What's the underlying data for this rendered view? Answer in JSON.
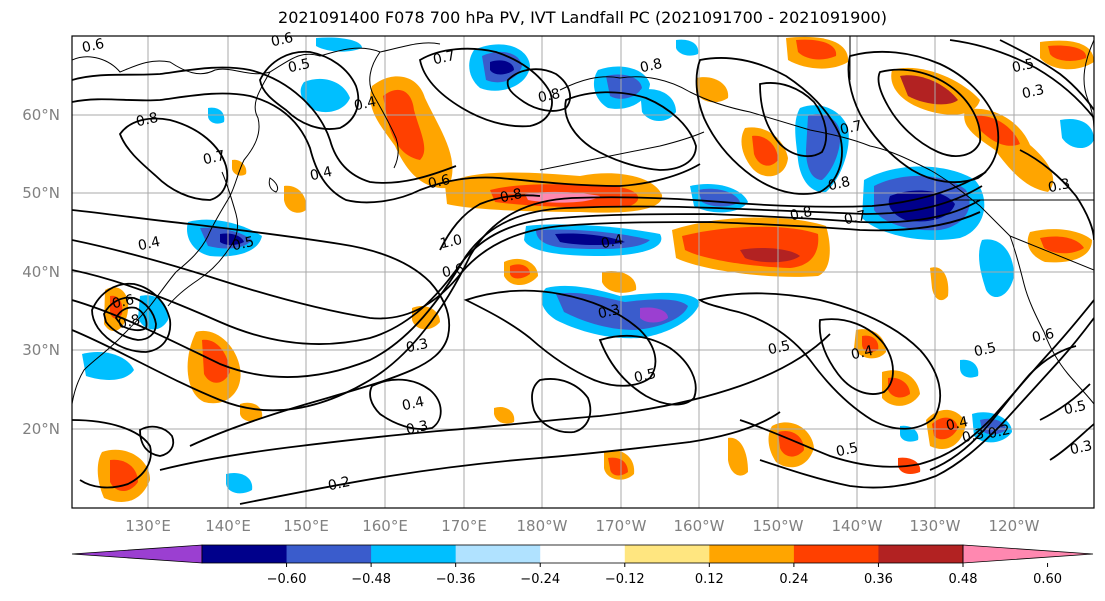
{
  "title": "2021091400 F078 700 hPa PV, IVT Landfall PC (2021091700 - 2021091900)",
  "lat_ticks": [
    "60°N",
    "50°N",
    "40°N",
    "30°N",
    "20°N"
  ],
  "lon_ticks": [
    "130°E",
    "140°E",
    "150°E",
    "160°E",
    "170°E",
    "180°W",
    "170°W",
    "160°W",
    "150°W",
    "140°W",
    "130°W",
    "120°W"
  ],
  "colorbar": {
    "tick_labels": [
      "−0.60",
      "−0.48",
      "−0.36",
      "−0.24",
      "−0.12",
      "0.12",
      "0.24",
      "0.36",
      "0.48",
      "0.60"
    ],
    "colors": [
      "#9b3fd1",
      "#00008b",
      "#3a5ccc",
      "#00bfff",
      "#b0e2ff",
      "#ffffff",
      "#ffe680",
      "#ffa500",
      "#ff4000",
      "#b22222",
      "#ff88b0"
    ]
  },
  "contour_labels": [
    "0.6",
    "0.6",
    "0.5",
    "0.7",
    "0.8",
    "0.8",
    "0.4",
    "0.8",
    "0.7",
    "0.4",
    "0.6",
    "0.8",
    "0.4",
    "0.5",
    "0.8",
    "0.7",
    "0.8",
    "0.7",
    "1.0",
    "0.4",
    "0.6",
    "0.5",
    "0.3",
    "0.3",
    "0.5",
    "0.4",
    "0.3",
    "0.5",
    "0.4",
    "0.3",
    "0.2",
    "0.5",
    "0.5",
    "0.4",
    "0.3",
    "0.5",
    "0.6",
    "0.2",
    "0.3",
    "0.8",
    "0.6",
    "0.3"
  ]
}
